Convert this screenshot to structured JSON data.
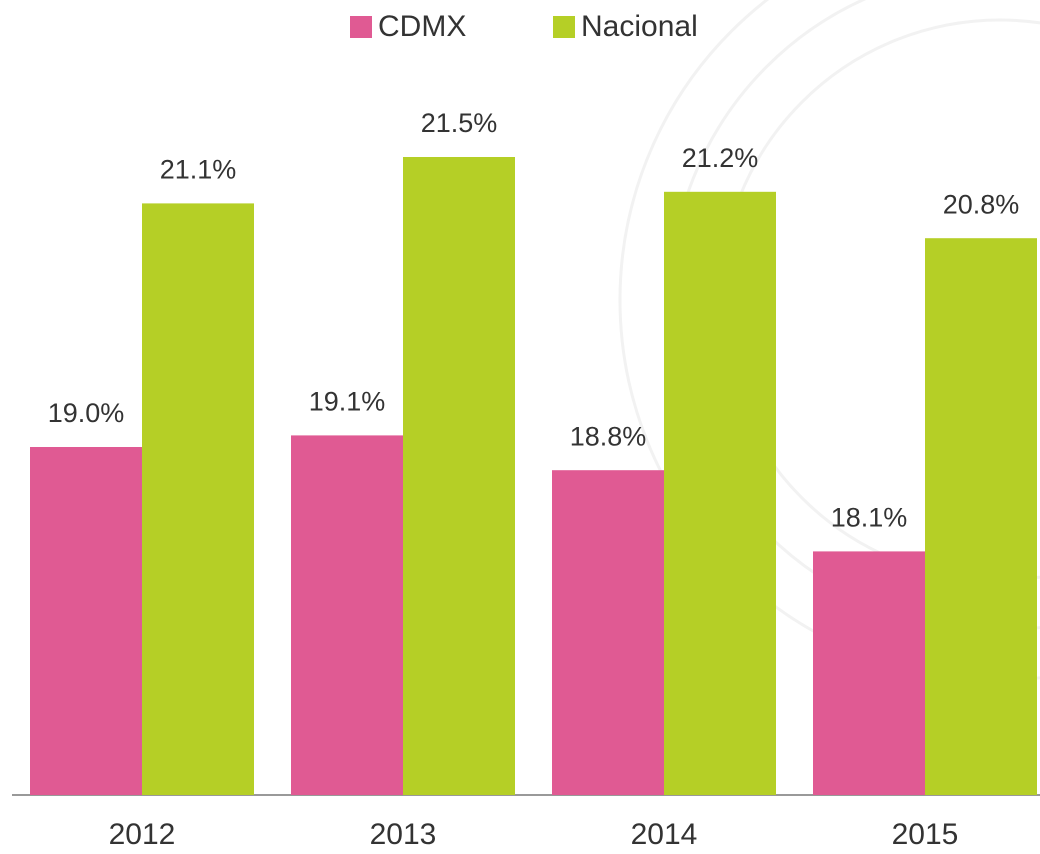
{
  "chart_data": {
    "type": "bar",
    "categories": [
      "2012",
      "2013",
      "2014",
      "2015"
    ],
    "series": [
      {
        "name": "CDMX",
        "color": "#e05a93",
        "values": [
          19.0,
          19.1,
          18.8,
          18.1
        ],
        "value_labels": [
          "19.0%",
          "19.1%",
          "18.8%",
          "18.1%"
        ]
      },
      {
        "name": "Nacional",
        "color": "#b5cf26",
        "values": [
          21.1,
          21.5,
          21.2,
          20.8
        ],
        "value_labels": [
          "21.1%",
          "21.5%",
          "21.2%",
          "20.8%"
        ]
      }
    ],
    "ylim": [
      16,
      22.5
    ]
  }
}
